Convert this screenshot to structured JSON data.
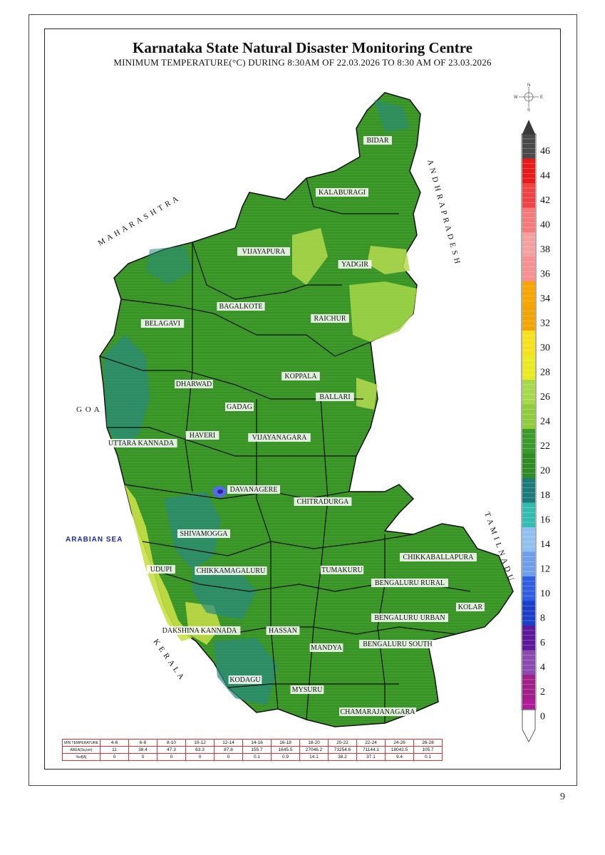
{
  "header": {
    "title": "Karnataka State Natural Disaster Monitoring Centre",
    "subtitle": "MINIMUM TEMPERATURE(°C) DURING 8:30AM OF 22.03.2026 TO 8:30 AM OF 23.03.2026"
  },
  "page_number": "9",
  "compass": {
    "n": "N",
    "s": "S",
    "e": "E",
    "w": "W"
  },
  "neighbors": {
    "maharashtra": "M A H A R A S H T R A",
    "andhra": "A N D H R A   P R A D E S H",
    "goa": "G O A",
    "kerala": "K E R A L A",
    "tamil_nadu": "T A M I L   N A D U",
    "sea": "ARABIAN SEA"
  },
  "districts": [
    "BIDAR",
    "KALABURAGI",
    "VIJAYAPURA",
    "YADGIR",
    "BAGALKOTE",
    "RAICHUR",
    "BELAGAVI",
    "KOPPALA",
    "DHARWAD",
    "BALLARI",
    "GADAG",
    "HAVERI",
    "VIJAYANAGARA",
    "UTTARA KANNADA",
    "DAVANAGERE",
    "CHITRADURGA",
    "SHIVAMOGGA",
    "CHIKKABALLAPURA",
    "UDUPI",
    "CHIKKAMAGALURU",
    "TUMAKURU",
    "BENGALURU RURAL",
    "KOLAR",
    "BENGALURU URBAN",
    "DAKSHINA KANNADA",
    "HASSAN",
    "MANDYA",
    "BENGALURU SOUTH",
    "KODAGU",
    "MYSURU",
    "CHAMARAJANAGARA"
  ],
  "legend": {
    "labels": [
      "46",
      "44",
      "42",
      "40",
      "38",
      "36",
      "34",
      "32",
      "30",
      "28",
      "26",
      "24",
      "22",
      "20",
      "18",
      "16",
      "14",
      "12",
      "10",
      "8",
      "6",
      "4",
      "2",
      "0"
    ],
    "colors": [
      "#4a4a4a",
      "#e81b1b",
      "#f24343",
      "#f57a7a",
      "#f5a0a0",
      "#f79090",
      "#f7a600",
      "#f2a500",
      "#f5e11d",
      "#eaea22",
      "#a6d94a",
      "#8fcc3c",
      "#3c9a2c",
      "#2f8c24",
      "#1d7a7a",
      "#33bdb0",
      "#8fc0f0",
      "#6f9fe8",
      "#2e5fe0",
      "#1a3fc8",
      "#5a1a9a",
      "#8a4ab0",
      "#a0208a",
      "#b01a9a"
    ]
  },
  "stats_table": {
    "row_headers": [
      "MIN TEMPERATURE",
      "AREA(Sq.km)",
      "%of[A]"
    ],
    "ranges": [
      "4-6",
      "6-8",
      "8-10",
      "10-12",
      "12-14",
      "14-16",
      "16-18",
      "18-20",
      "20-22",
      "22-24",
      "24-26",
      "26-28"
    ],
    "areas": [
      "11",
      "38.4",
      "47.3",
      "63.3",
      "87.8",
      "155.7",
      "1645.5",
      "27046.2",
      "73254.6",
      "71144.1",
      "18042.5",
      "105.7"
    ],
    "percents": [
      "0",
      "0",
      "0",
      "0",
      "0",
      "0.1",
      "0.9",
      "14.1",
      "38.2",
      "37.1",
      "9.4",
      "0.1"
    ]
  }
}
